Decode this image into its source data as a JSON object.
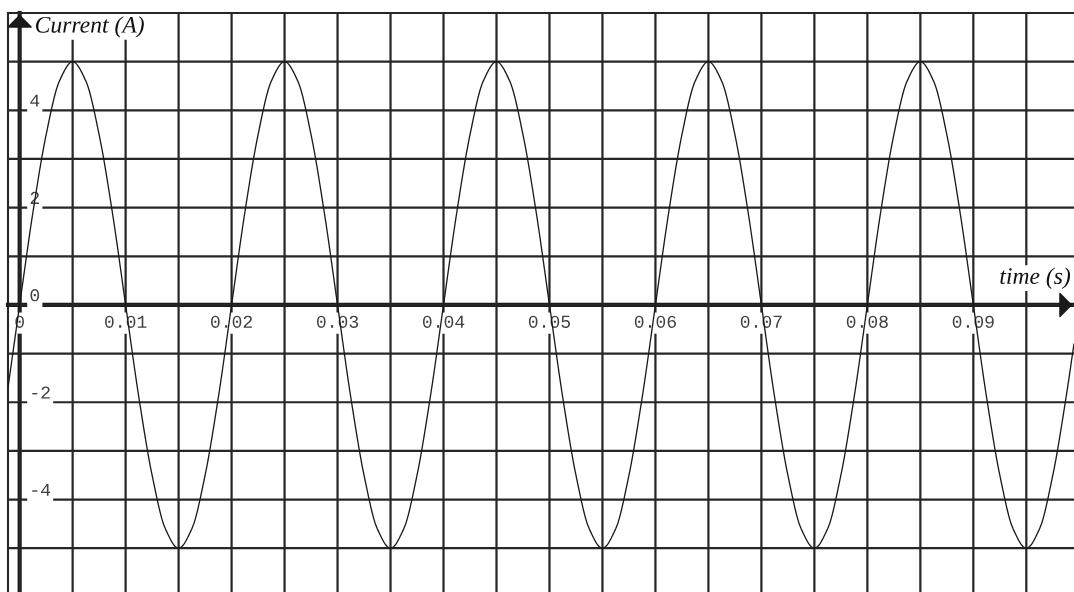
{
  "chart_data": {
    "type": "line",
    "xlabel": "time (s)",
    "ylabel": "Current (A)",
    "x": [
      -0.0011,
      0,
      0.00125,
      0.0025,
      0.00375,
      0.005,
      0.00625,
      0.0075,
      0.00875,
      0.01,
      0.01125,
      0.0125,
      0.01375,
      0.015,
      0.01625,
      0.0175,
      0.01875,
      0.02,
      0.02125,
      0.0225,
      0.02375,
      0.025,
      0.02625,
      0.0275,
      0.02875,
      0.03,
      0.03125,
      0.0325,
      0.03375,
      0.035,
      0.03625,
      0.0375,
      0.03875,
      0.04,
      0.04125,
      0.0425,
      0.04375,
      0.045,
      0.04625,
      0.0475,
      0.04875,
      0.05,
      0.05125,
      0.0525,
      0.05375,
      0.055,
      0.05625,
      0.0575,
      0.05875,
      0.06,
      0.06125,
      0.0625,
      0.06375,
      0.065,
      0.06625,
      0.0675,
      0.06875,
      0.07,
      0.07125,
      0.0725,
      0.07375,
      0.075,
      0.07625,
      0.0775,
      0.07875,
      0.08,
      0.08125,
      0.0825,
      0.08375,
      0.085,
      0.08625,
      0.0875,
      0.08875,
      0.09,
      0.09125,
      0.0925,
      0.09375,
      0.095,
      0.09625,
      0.0975,
      0.09875,
      0.0995
    ],
    "series": [
      {
        "color": "#1a1a1a",
        "values": [
          -1.7,
          0,
          1.9,
          3.5,
          4.6,
          5,
          4.6,
          3.5,
          1.9,
          0,
          -1.9,
          -3.5,
          -4.6,
          -5,
          -4.6,
          -3.5,
          -1.9,
          0,
          1.9,
          3.5,
          4.6,
          5,
          4.6,
          3.5,
          1.9,
          0,
          -1.9,
          -3.5,
          -4.6,
          -5,
          -4.6,
          -3.5,
          -1.9,
          0,
          1.9,
          3.5,
          4.6,
          5,
          4.6,
          3.5,
          1.9,
          0,
          -1.9,
          -3.5,
          -4.6,
          -5,
          -4.6,
          -3.5,
          -1.9,
          0,
          1.9,
          3.5,
          4.6,
          5,
          4.6,
          3.5,
          1.9,
          0,
          -1.9,
          -3.5,
          -4.6,
          -5,
          -4.6,
          -3.5,
          -1.9,
          0,
          1.9,
          3.5,
          4.6,
          5,
          4.6,
          3.5,
          1.9,
          0,
          -1.9,
          -3.5,
          -4.6,
          -5,
          -4.6,
          -3.5,
          -1.9,
          -0.8
        ]
      }
    ],
    "xlim": [
      -0.0011,
      0.0995
    ],
    "ylim": [
      -5.9,
      6
    ],
    "xticks": [
      0,
      {
        "value": 0.005,
        "label": null
      },
      0.01,
      {
        "value": 0.015,
        "label": null
      },
      0.02,
      {
        "value": 0.025,
        "label": null
      },
      0.03,
      {
        "value": 0.035,
        "label": null
      },
      0.04,
      {
        "value": 0.045,
        "label": null
      },
      0.05,
      {
        "value": 0.055,
        "label": null
      },
      0.06,
      {
        "value": 0.065,
        "label": null
      },
      0.07,
      {
        "value": 0.075,
        "label": null
      },
      0.08,
      {
        "value": 0.085,
        "label": null
      },
      0.09,
      {
        "value": 0.095,
        "label": null
      }
    ],
    "yticks": [
      {
        "value": -5,
        "label": null
      },
      -4,
      {
        "value": -3,
        "label": null
      },
      -2,
      {
        "value": -1,
        "label": null
      },
      0,
      {
        "value": 1,
        "label": null
      },
      2,
      {
        "value": 3,
        "label": null
      },
      4,
      {
        "value": 5,
        "label": null
      }
    ],
    "grid": true,
    "line_style": "solid"
  }
}
